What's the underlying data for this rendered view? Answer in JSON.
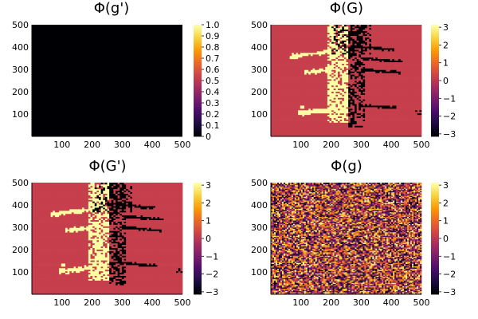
{
  "chart_data": [
    {
      "type": "heatmap",
      "title": "Φ(g')",
      "pattern": "uniform",
      "xlim": [
        0,
        500
      ],
      "ylim": [
        0,
        500
      ],
      "xticks": [
        100,
        200,
        300,
        400,
        500
      ],
      "yticks": [
        100,
        200,
        300,
        400,
        500
      ],
      "colorbar": {
        "min": 0,
        "max": 1,
        "ticks": [
          0,
          0.1,
          0.2,
          0.3,
          0.4,
          0.5,
          0.6,
          0.7,
          0.8,
          0.9,
          1.0
        ],
        "tick_labels": [
          "0",
          "0.1",
          "0.2",
          "0.3",
          "0.4",
          "0.5",
          "0.6",
          "0.7",
          "0.8",
          "0.9",
          "1.0"
        ]
      },
      "value": 0
    },
    {
      "type": "heatmap",
      "title": "Φ(G)",
      "pattern": "phase-map",
      "xlim": [
        0,
        500
      ],
      "ylim": [
        0,
        500
      ],
      "xticks": [
        100,
        200,
        300,
        400,
        500
      ],
      "yticks": [
        100,
        200,
        300,
        400,
        500
      ],
      "colorbar": {
        "min": -3.14,
        "max": 3.14,
        "ticks": [
          -3,
          -2,
          -1,
          0,
          1,
          2,
          3
        ],
        "tick_labels": [
          "−3",
          "−2",
          "−1",
          "0",
          "1",
          "2",
          "3"
        ]
      },
      "background_value": 0.2,
      "bright_value": 3.14,
      "dark_value": -3.14
    },
    {
      "type": "heatmap",
      "title": "Φ(G')",
      "pattern": "phase-map",
      "xlim": [
        0,
        500
      ],
      "ylim": [
        0,
        500
      ],
      "xticks": [
        100,
        200,
        300,
        400,
        500
      ],
      "yticks": [
        100,
        200,
        300,
        400,
        500
      ],
      "colorbar": {
        "min": -3.14,
        "max": 3.14,
        "ticks": [
          -3,
          -2,
          -1,
          0,
          1,
          2,
          3
        ],
        "tick_labels": [
          "−3",
          "−2",
          "−1",
          "0",
          "1",
          "2",
          "3"
        ]
      },
      "background_value": 0.2,
      "bright_value": 3.14,
      "dark_value": -3.14
    },
    {
      "type": "heatmap",
      "title": "Φ(g)",
      "pattern": "random-noise",
      "xlim": [
        0,
        500
      ],
      "ylim": [
        0,
        500
      ],
      "xticks": [
        100,
        200,
        300,
        400,
        500
      ],
      "yticks": [
        100,
        200,
        300,
        400,
        500
      ],
      "colorbar": {
        "min": -3.14,
        "max": 3.14,
        "ticks": [
          -3,
          -2,
          -1,
          0,
          1,
          2,
          3
        ],
        "tick_labels": [
          "−3",
          "−2",
          "−1",
          "0",
          "1",
          "2",
          "3"
        ]
      }
    }
  ],
  "colormap": {
    "name": "inferno",
    "stops": [
      "#000004",
      "#1b0c41",
      "#4a0c6b",
      "#781c6d",
      "#a52c60",
      "#cf4446",
      "#ed6925",
      "#fb9b06",
      "#f7d13d",
      "#fcffa4"
    ]
  }
}
